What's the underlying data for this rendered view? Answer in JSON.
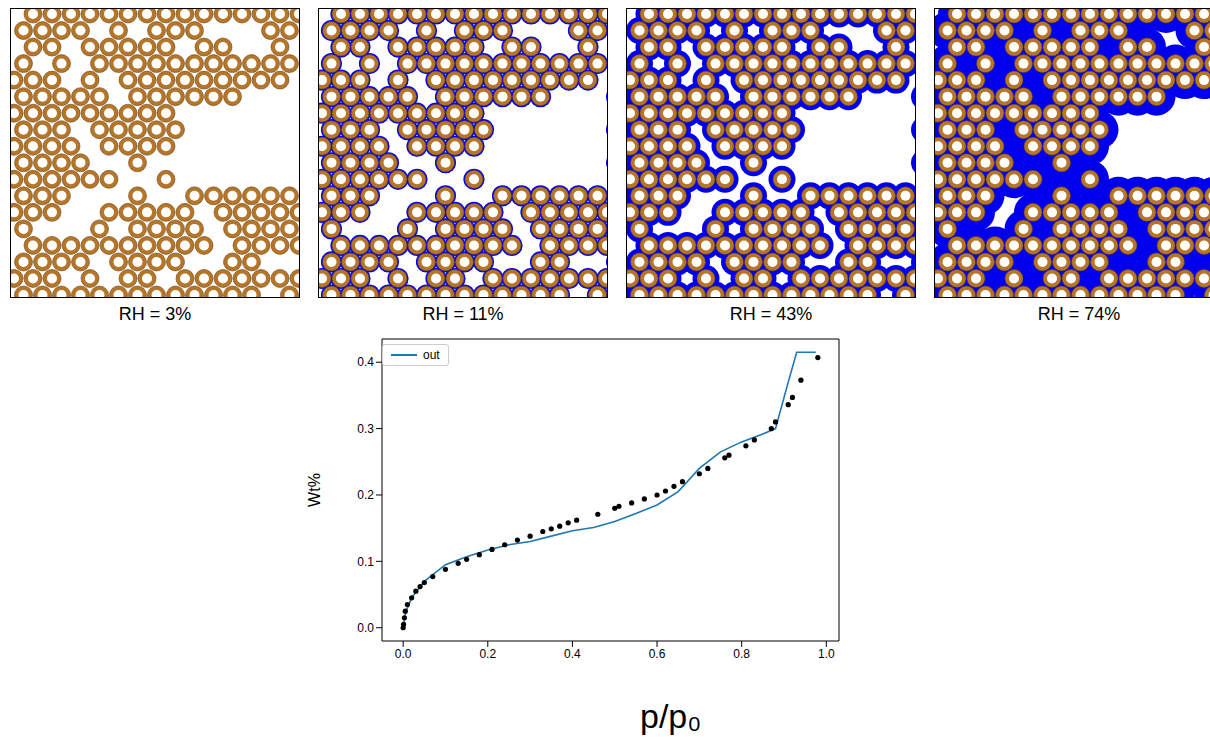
{
  "panels": [
    {
      "label": "RH = 3%"
    },
    {
      "label": "RH = 11%"
    },
    {
      "label": "RH = 43%"
    },
    {
      "label": "RH = 74%"
    }
  ],
  "chart_data": {
    "type": "line",
    "xlabel": "p/p₀",
    "ylabel": "Wt%",
    "legend": "upper left",
    "grid": false,
    "xlim": [
      -0.05,
      1.03
    ],
    "ylim": [
      -0.02,
      0.435
    ],
    "xticks": [
      {
        "value": 0,
        "label": "0.0"
      },
      0.2,
      0.4,
      0.6,
      0.8,
      {
        "value": 1,
        "label": "1.0"
      }
    ],
    "yticks": [
      {
        "value": 0,
        "label": "0.0"
      },
      0.1,
      0.2,
      0.3,
      0.4
    ],
    "series": [
      {
        "name": "out",
        "type": "line",
        "color": "#1f77b4",
        "x": [
          0,
          0.005,
          0.01,
          0.02,
          0.05,
          0.1,
          0.15,
          0.2,
          0.25,
          0.3,
          0.35,
          0.4,
          0.45,
          0.5,
          0.55,
          0.6,
          0.65,
          0.7,
          0.75,
          0.8,
          0.85,
          0.88,
          0.91,
          0.93,
          0.95,
          0.975
        ],
        "values": [
          0,
          0.02,
          0.03,
          0.045,
          0.07,
          0.095,
          0.107,
          0.117,
          0.125,
          0.13,
          0.138,
          0.146,
          0.151,
          0.16,
          0.172,
          0.185,
          0.205,
          0.24,
          0.265,
          0.28,
          0.292,
          0.3,
          0.37,
          0.415,
          0.415,
          0.415
        ]
      },
      {
        "type": "scatter",
        "color": "#000000",
        "marker": "circle",
        "x": [
          0,
          0.001,
          0.003,
          0.005,
          0.01,
          0.02,
          0.03,
          0.04,
          0.05,
          0.07,
          0.1,
          0.13,
          0.15,
          0.18,
          0.21,
          0.24,
          0.27,
          0.3,
          0.33,
          0.35,
          0.37,
          0.39,
          0.41,
          0.46,
          0.5,
          0.51,
          0.54,
          0.57,
          0.6,
          0.62,
          0.64,
          0.66,
          0.7,
          0.72,
          0.76,
          0.77,
          0.81,
          0.83,
          0.87,
          0.88,
          0.91,
          0.92,
          0.94,
          0.98
        ],
        "values": [
          0,
          0.005,
          0.015,
          0.025,
          0.035,
          0.045,
          0.055,
          0.062,
          0.068,
          0.077,
          0.088,
          0.097,
          0.103,
          0.11,
          0.118,
          0.125,
          0.132,
          0.138,
          0.145,
          0.149,
          0.153,
          0.158,
          0.162,
          0.171,
          0.18,
          0.183,
          0.188,
          0.194,
          0.2,
          0.206,
          0.213,
          0.22,
          0.232,
          0.24,
          0.256,
          0.26,
          0.274,
          0.283,
          0.3,
          0.31,
          0.336,
          0.347,
          0.373,
          0.407
        ]
      }
    ]
  }
}
